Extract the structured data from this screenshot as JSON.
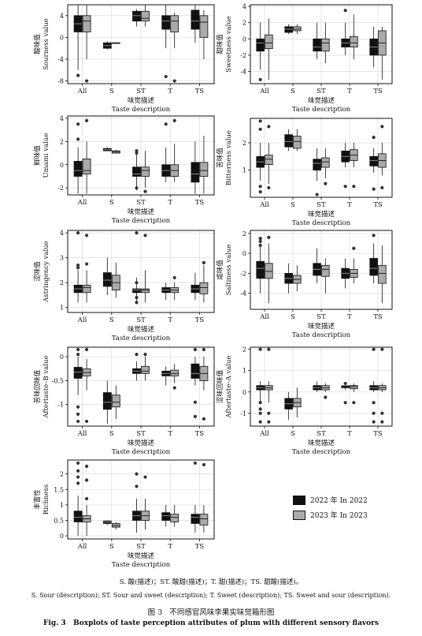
{
  "figure": {
    "number_zh": "图 3",
    "title_zh": "不同感官风味李果实味觉箱形图",
    "number_en": "Fig. 3",
    "title_en": "Boxplots of taste perception attributes of plum with different sensory flavors",
    "footnote_zh": "S. 酸(描述)；ST. 酸甜(描述)；T. 甜(描述)；TS. 甜酸(描述)。",
    "footnote_en": "S. Sour (description); ST. Sour and sweet (description); T. Sweet (description); TS. Sweet and sour (description)."
  },
  "legend": {
    "items": [
      {
        "label": "2022 年 In 2022",
        "color": "#111111"
      },
      {
        "label": "2023 年 In 2023",
        "color": "#aaaaaa"
      }
    ]
  },
  "shared": {
    "xlabel_zh": "味觉描述",
    "xlabel_en": "Taste description",
    "categories": [
      "All",
      "S",
      "ST",
      "T",
      "TS"
    ]
  },
  "chart_data": [
    {
      "type": "box",
      "ylabel_zh": "酸味值",
      "ylabel_en": "Sourness value",
      "ylim": [
        -8.5,
        6
      ],
      "yticks": [
        -8,
        -4,
        0,
        4
      ],
      "series": [
        {
          "name": "2022",
          "boxes": [
            [
              -6,
              1,
              2.5,
              4,
              6
            ],
            [
              -2.2,
              -2,
              -1.5,
              -1,
              -0.7
            ],
            [
              2,
              3,
              4,
              4.8,
              5.2
            ],
            [
              -2,
              1.5,
              3,
              4,
              6
            ],
            [
              -1,
              1.5,
              3,
              5,
              6
            ]
          ],
          "outliers": [
            [
              -7
            ],
            [],
            [],
            [
              -7.2
            ],
            []
          ]
        },
        {
          "name": "2023",
          "boxes": [
            [
              -4,
              1,
              3,
              4,
              6
            ],
            [
              -1,
              -1,
              -1,
              -1,
              -1
            ],
            [
              2,
              3,
              3.5,
              4.8,
              6
            ],
            [
              -2,
              1,
              3,
              4,
              4.5
            ],
            [
              -4,
              0,
              2.8,
              4,
              5
            ]
          ],
          "outliers": [
            [
              -8
            ],
            [],
            [],
            [
              -8
            ],
            []
          ]
        }
      ]
    },
    {
      "type": "box",
      "ylabel_zh": "甜味值",
      "ylabel_en": "Sweetness value",
      "ylim": [
        -5.5,
        4.2
      ],
      "yticks": [
        -4,
        -2,
        0,
        2,
        4
      ],
      "series": [
        {
          "name": "2022",
          "boxes": [
            [
              -3.8,
              -1.5,
              -0.5,
              0,
              2
            ],
            [
              0.6,
              0.8,
              1.2,
              1.5,
              1.8
            ],
            [
              -2.5,
              -1.5,
              -1,
              0,
              2
            ],
            [
              -2,
              -1,
              -0.5,
              0,
              2
            ],
            [
              -3.5,
              -2,
              -1,
              0,
              1.5
            ]
          ],
          "outliers": [
            [
              -5
            ],
            [],
            [],
            [
              3.5
            ],
            []
          ]
        },
        {
          "name": "2023",
          "boxes": [
            [
              -5,
              -1.2,
              -0.5,
              0.5,
              2.5
            ],
            [
              0.6,
              1,
              1.2,
              1.5,
              1.8
            ],
            [
              -3,
              -1.5,
              -0.5,
              0,
              2
            ],
            [
              -2.5,
              -1,
              -0.5,
              0.3,
              3
            ],
            [
              -5,
              -2,
              -0.5,
              1,
              1.5
            ]
          ],
          "outliers": [
            [],
            [],
            [],
            [],
            []
          ]
        }
      ]
    },
    {
      "type": "box",
      "ylabel_zh": "鲜味值",
      "ylabel_en": "Umami value",
      "ylim": [
        -2.6,
        4.2
      ],
      "yticks": [
        -2,
        0,
        2,
        4
      ],
      "series": [
        {
          "name": "2022",
          "boxes": [
            [
              -2.5,
              -1,
              -0.5,
              0.3,
              1.5
            ],
            [
              1.2,
              1.2,
              1.3,
              1.4,
              1.5
            ],
            [
              -2.2,
              -1,
              -0.8,
              -0.2,
              1
            ],
            [
              -1.5,
              -1,
              -0.5,
              0,
              1.5
            ],
            [
              -2.5,
              -1.5,
              -0.8,
              0.2,
              2
            ]
          ],
          "outliers": [
            [
              3.5,
              2.2
            ],
            [],
            [
              1.2,
              1,
              -2
            ],
            [
              3.5
            ],
            []
          ]
        },
        {
          "name": "2023",
          "boxes": [
            [
              -2.5,
              -0.8,
              -0.5,
              0.5,
              2
            ],
            [
              1,
              1,
              1.1,
              1.2,
              1.3
            ],
            [
              -2,
              -1,
              -0.5,
              -0.2,
              1.2
            ],
            [
              -1.5,
              -1,
              -0.5,
              0,
              1.8
            ],
            [
              -2.5,
              -1,
              -0.5,
              0.2,
              2.5
            ]
          ],
          "outliers": [
            [
              3.8
            ],
            [],
            [
              -2.3
            ],
            [
              3.8
            ],
            []
          ]
        }
      ]
    },
    {
      "type": "box",
      "ylabel_zh": "苦味值",
      "ylabel_en": "Bitterness value",
      "ylim": [
        0.0,
        2.9
      ],
      "yticks": [
        1,
        2
      ],
      "series": [
        {
          "name": "2022",
          "boxes": [
            [
              0.6,
              1.1,
              1.3,
              1.5,
              2
            ],
            [
              1.7,
              1.85,
              2.05,
              2.3,
              2.5
            ],
            [
              0.6,
              1.0,
              1.25,
              1.4,
              1.8
            ],
            [
              1.1,
              1.3,
              1.5,
              1.7,
              2
            ],
            [
              0.9,
              1.15,
              1.35,
              1.5,
              1.8
            ]
          ],
          "outliers": [
            [
              2.8,
              2.5,
              0.4,
              0.2
            ],
            [],
            [
              0.1
            ],
            [
              0.4
            ],
            [
              2.2,
              0.3
            ]
          ]
        },
        {
          "name": "2023",
          "boxes": [
            [
              0.5,
              1.2,
              1.4,
              1.55,
              2
            ],
            [
              1.7,
              1.8,
              2.05,
              2.25,
              2.5
            ],
            [
              0.7,
              1.1,
              1.3,
              1.45,
              1.8
            ],
            [
              1.1,
              1.35,
              1.55,
              1.75,
              2
            ],
            [
              0.8,
              1.1,
              1.35,
              1.6,
              2
            ]
          ],
          "outliers": [
            [
              2.6,
              0.35
            ],
            [],
            [
              0.5
            ],
            [
              0.4
            ],
            [
              2.6,
              0.35
            ]
          ]
        }
      ]
    },
    {
      "type": "box",
      "ylabel_zh": "涩味值",
      "ylabel_en": "Astringency value",
      "ylim": [
        0.8,
        4.1
      ],
      "yticks": [
        1,
        2,
        3,
        4
      ],
      "series": [
        {
          "name": "2022",
          "boxes": [
            [
              1.2,
              1.6,
              1.75,
              1.9,
              2.5
            ],
            [
              1.5,
              1.85,
              2.1,
              2.4,
              3
            ],
            [
              1.2,
              1.6,
              1.7,
              1.75,
              2.2
            ],
            [
              1.3,
              1.6,
              1.7,
              1.8,
              2
            ],
            [
              1.3,
              1.6,
              1.75,
              1.9,
              2.4
            ]
          ],
          "outliers": [
            [
              4,
              2.7,
              2.6
            ],
            [],
            [
              4,
              2,
              1.4,
              1.2
            ],
            [],
            []
          ]
        },
        {
          "name": "2023",
          "boxes": [
            [
              1.2,
              1.6,
              1.8,
              1.9,
              2.5
            ],
            [
              1.4,
              1.7,
              2,
              2.3,
              2.8
            ],
            [
              1.2,
              1.6,
              1.7,
              1.75,
              2.5
            ],
            [
              1.3,
              1.6,
              1.7,
              1.8,
              2
            ],
            [
              1.2,
              1.55,
              1.8,
              2,
              2.7
            ]
          ],
          "outliers": [
            [
              3.9,
              2.75
            ],
            [],
            [
              3.9
            ],
            [
              2.2
            ],
            [
              2.8
            ]
          ]
        }
      ]
    },
    {
      "type": "box",
      "ylabel_zh": "咸味值",
      "ylabel_en": "Saltiness value",
      "ylim": [
        -5.6,
        2.3
      ],
      "yticks": [
        -4,
        -2,
        0,
        2
      ],
      "series": [
        {
          "name": "2022",
          "boxes": [
            [
              -4,
              -2.5,
              -1.5,
              -0.8,
              1
            ],
            [
              -4,
              -3,
              -2.5,
              -2,
              -1
            ],
            [
              -3,
              -2.2,
              -1.6,
              -1,
              0.5
            ],
            [
              -3.5,
              -2.5,
              -2,
              -1.5,
              -0.5
            ],
            [
              -3,
              -2.2,
              -1.5,
              -0.5,
              1
            ]
          ],
          "outliers": [
            [
              1.5,
              1.2,
              0.8
            ],
            [],
            [],
            [],
            [
              1.8
            ]
          ]
        },
        {
          "name": "2023",
          "boxes": [
            [
              -5,
              -2.5,
              -1.8,
              -1,
              1
            ],
            [
              -3.8,
              -3,
              -2.6,
              -2.2,
              -1.2
            ],
            [
              -4,
              -2.3,
              -1.6,
              -1.2,
              -0.5
            ],
            [
              -3,
              -2.4,
              -2,
              -1.6,
              -0.5
            ],
            [
              -5,
              -3,
              -2,
              -1.2,
              0.8
            ]
          ],
          "outliers": [
            [
              1.6
            ],
            [],
            [],
            [
              0.5
            ],
            []
          ]
        }
      ]
    },
    {
      "type": "box",
      "ylabel_zh": "苦味回味值",
      "ylabel_en": "Aftertaste–B value",
      "ylim": [
        -1.45,
        0.2
      ],
      "yticks": [
        -1.0,
        -0.5,
        0.0
      ],
      "series": [
        {
          "name": "2022",
          "boxes": [
            [
              -0.8,
              -0.45,
              -0.32,
              -0.22,
              0
            ],
            [
              -1.4,
              -1.1,
              -0.95,
              -0.75,
              -0.5
            ],
            [
              -0.5,
              -0.35,
              -0.3,
              -0.25,
              -0.1
            ],
            [
              -0.6,
              -0.4,
              -0.35,
              -0.3,
              -0.2
            ],
            [
              -0.6,
              -0.45,
              -0.35,
              -0.15,
              0
            ]
          ],
          "outliers": [
            [
              0.15,
              0.05,
              -1.35,
              -1.2,
              -1.05
            ],
            [],
            [
              0.05
            ],
            [],
            [
              0.15,
              -0.95,
              -1.25
            ]
          ]
        },
        {
          "name": "2023",
          "boxes": [
            [
              -0.7,
              -0.4,
              -0.33,
              -0.25,
              -0.05
            ],
            [
              -1.3,
              -1.05,
              -0.95,
              -0.8,
              -0.6
            ],
            [
              -0.5,
              -0.35,
              -0.3,
              -0.2,
              0
            ],
            [
              -0.55,
              -0.4,
              -0.35,
              -0.28,
              -0.15
            ],
            [
              -0.7,
              -0.5,
              -0.35,
              -0.2,
              0
            ]
          ],
          "outliers": [
            [
              0.15,
              -1.35
            ],
            [],
            [
              0.05
            ],
            [
              -0.65
            ],
            [
              0.15,
              -1.3
            ]
          ]
        }
      ]
    },
    {
      "type": "box",
      "ylabel_zh": "涩味回味值",
      "ylabel_en": "Aftertaste–A value",
      "ylim": [
        -1.6,
        2.1
      ],
      "yticks": [
        -1,
        0,
        1,
        2
      ],
      "series": [
        {
          "name": "2022",
          "boxes": [
            [
              -0.5,
              0.1,
              0.2,
              0.3,
              0.5
            ],
            [
              -1.3,
              -0.8,
              -0.55,
              -0.3,
              0
            ],
            [
              0,
              0.1,
              0.2,
              0.3,
              0.5
            ],
            [
              0.1,
              0.2,
              0.3,
              0.3,
              0.4
            ],
            [
              0,
              0.1,
              0.2,
              0.3,
              0.5
            ]
          ],
          "outliers": [
            [
              2,
              -0.5,
              -0.8,
              -1.0,
              -1.4
            ],
            [],
            [],
            [
              0.4,
              -0.5
            ],
            [
              2,
              -0.5,
              -1.0,
              -1.4
            ]
          ]
        },
        {
          "name": "2023",
          "boxes": [
            [
              -0.5,
              0.1,
              0.2,
              0.3,
              0.5
            ],
            [
              -1.2,
              -0.7,
              -0.5,
              -0.3,
              0.2
            ],
            [
              0,
              0.1,
              0.2,
              0.3,
              0.4
            ],
            [
              0,
              0.15,
              0.25,
              0.3,
              0.4
            ],
            [
              0,
              0.1,
              0.2,
              0.3,
              0.4
            ]
          ],
          "outliers": [
            [
              2,
              -1.0,
              -1.4
            ],
            [],
            [
              -0.25
            ],
            [
              -0.5
            ],
            [
              2,
              -1.0,
              -1.4
            ]
          ]
        }
      ]
    },
    {
      "type": "box",
      "ylabel_zh": "丰富性",
      "ylabel_en": "Richness",
      "ylim": [
        -0.1,
        2.45
      ],
      "yticks": [
        0.0,
        0.5,
        1.0,
        1.5,
        2.0
      ],
      "series": [
        {
          "name": "2022",
          "boxes": [
            [
              0,
              0.45,
              0.6,
              0.8,
              1.3
            ],
            [
              0.35,
              0.4,
              0.45,
              0.48,
              0.5
            ],
            [
              0.1,
              0.5,
              0.65,
              0.8,
              1.2
            ],
            [
              0.3,
              0.5,
              0.65,
              0.75,
              1
            ],
            [
              0.1,
              0.4,
              0.6,
              0.7,
              1
            ]
          ],
          "outliers": [
            [
              2.35,
              2.1,
              1.9,
              1.7
            ],
            [],
            [
              2,
              1.6
            ],
            [],
            [
              2.35
            ]
          ]
        },
        {
          "name": "2023",
          "boxes": [
            [
              0,
              0.45,
              0.55,
              0.65,
              1
            ],
            [
              0.2,
              0.28,
              0.33,
              0.4,
              0.45
            ],
            [
              0.2,
              0.5,
              0.65,
              0.8,
              1.2
            ],
            [
              0.3,
              0.45,
              0.6,
              0.7,
              1
            ],
            [
              0.1,
              0.35,
              0.55,
              0.7,
              1
            ]
          ],
          "outliers": [
            [
              2.25,
              1.8,
              1.2
            ],
            [],
            [
              1.9
            ],
            [],
            [
              2.3
            ]
          ]
        }
      ]
    }
  ]
}
